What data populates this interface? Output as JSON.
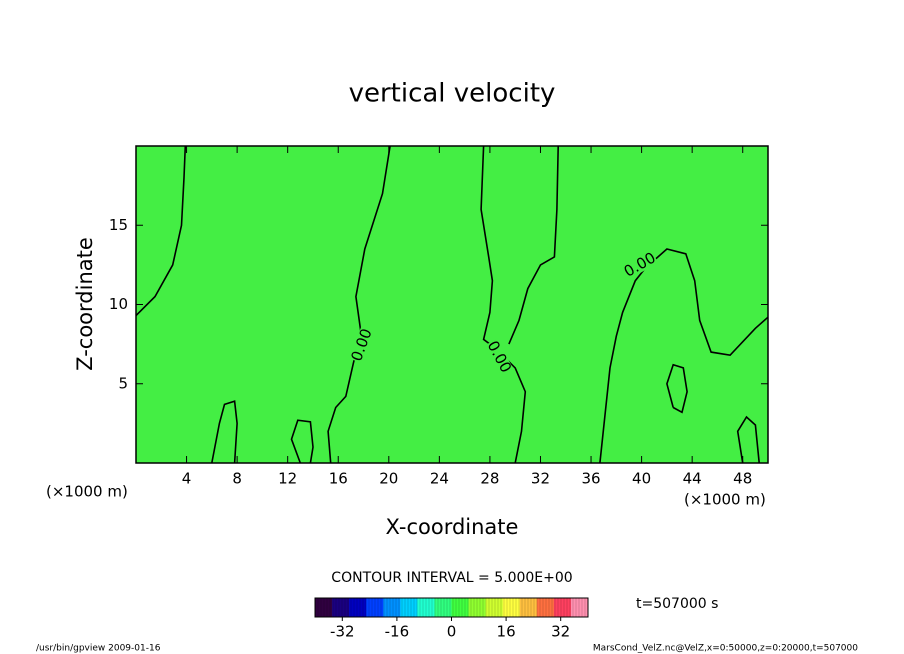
{
  "chart_data": {
    "type": "contour",
    "title": "vertical velocity",
    "xlabel": "X-coordinate",
    "ylabel": "Z-coordinate",
    "x_unit": "(×1000 m)",
    "y_unit": "(×1000 m)",
    "xlim": [
      0,
      50
    ],
    "ylim": [
      0,
      20
    ],
    "xticks": [
      4,
      8,
      12,
      16,
      20,
      24,
      28,
      32,
      36,
      40,
      44,
      48
    ],
    "yticks": [
      5,
      10,
      15
    ],
    "field_color": "#44ee44",
    "contour_color": "#000000",
    "contour_interval_text": "CONTOUR INTERVAL = 5.000E+00",
    "time_text": "t=507000 s",
    "contours": [
      {
        "level": 0,
        "labels": [
          "0.00",
          "0.00",
          "0.00"
        ],
        "lines": [
          {
            "x": [
              0,
              1.5,
              2.9,
              3.6,
              3.8,
              3.9
            ],
            "y": [
              9.3,
              10.5,
              12.5,
              15,
              18,
              20
            ]
          },
          {
            "x": [
              20.1,
              19.5,
              18.1,
              17.4,
              17.8,
              17.2,
              16.6,
              15.8,
              15.2,
              15.4
            ],
            "y": [
              20,
              17,
              13.5,
              10.5,
              8.2,
              6.3,
              4.2,
              3.5,
              2,
              0
            ]
          },
          {
            "x": [
              27.5,
              27.3,
              27.9,
              28.2,
              28,
              27.5,
              28.5,
              30,
              30.8,
              30.5,
              30
            ],
            "y": [
              20,
              16,
              13,
              11.5,
              9.5,
              7.8,
              7.2,
              6,
              4.5,
              2,
              0
            ]
          },
          {
            "x": [
              33.4,
              33.3,
              33.1,
              32,
              31,
              30.3,
              29.5
            ],
            "y": [
              20,
              16,
              13,
              12.5,
              11,
              9,
              7.5
            ]
          },
          {
            "x": [
              36.7,
              37.5,
              38,
              38.5,
              39.5,
              40.3,
              42,
              43.5,
              44.2,
              44.6,
              45.5,
              47,
              49,
              50
            ],
            "y": [
              0,
              6,
              8,
              9.5,
              11.5,
              12.3,
              13.5,
              13.2,
              11.5,
              9,
              7,
              6.8,
              8.5,
              9.2
            ]
          },
          {
            "x": [
              13,
              12.3,
              12.8,
              13.8,
              14,
              13.8
            ],
            "y": [
              0,
              1.5,
              2.7,
              2.6,
              1,
              0
            ]
          },
          {
            "x": [
              6,
              6.6,
              7,
              7.8,
              8,
              7.8
            ],
            "y": [
              0,
              2.5,
              3.7,
              3.9,
              2.5,
              0
            ]
          },
          {
            "x": [
              42.5,
              42,
              42.5,
              43.3,
              43.6,
              43.2,
              42.5
            ],
            "y": [
              3.5,
              5,
              6.2,
              6,
              4.5,
              3.2,
              3.5
            ]
          },
          {
            "x": [
              48,
              47.6,
              48.3,
              49,
              49.3
            ],
            "y": [
              0,
              2,
              2.9,
              2.4,
              0
            ]
          }
        ]
      }
    ],
    "colorbar": {
      "range": [
        -40,
        40
      ],
      "ticks": [
        -32,
        -16,
        0,
        16,
        32
      ],
      "colors": [
        "#300040",
        "#1a0080",
        "#0000c0",
        "#0040ff",
        "#0090ff",
        "#00d0ff",
        "#20ffd0",
        "#30ff80",
        "#40ff40",
        "#90ff30",
        "#d0ff30",
        "#ffff40",
        "#ffc040",
        "#ff7040",
        "#ff4060",
        "#ff90b0"
      ]
    }
  },
  "footer_left": "/usr/bin/gpview   2009-01-16",
  "footer_right": "MarsCond_VelZ.nc@VelZ,x=0:50000,z=0:20000,t=507000"
}
